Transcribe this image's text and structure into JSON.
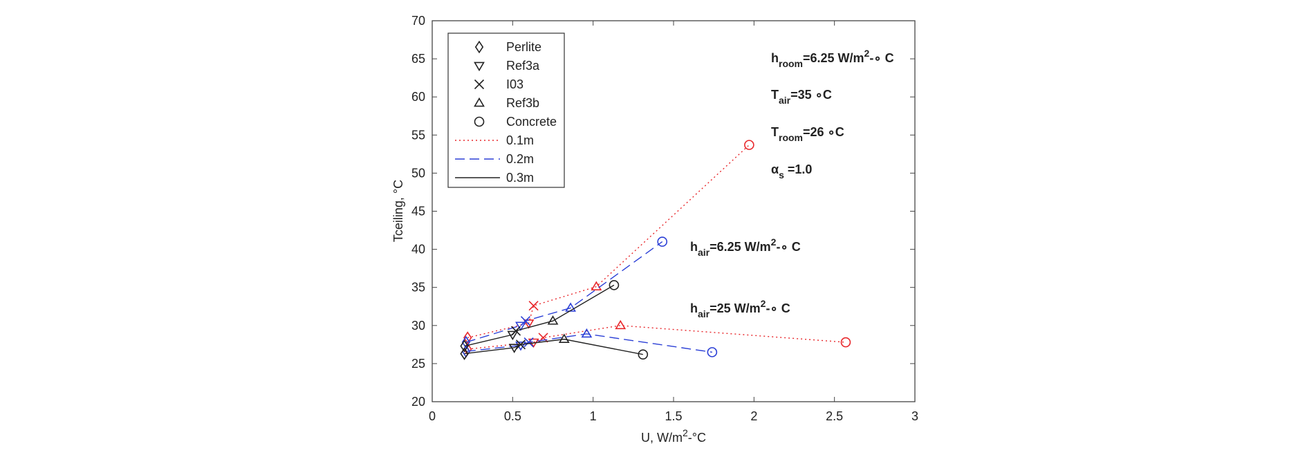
{
  "chart_data": {
    "type": "line",
    "xlabel": [
      {
        "text": "U, W/m"
      },
      {
        "text": "2",
        "style": "sup"
      },
      {
        "text": "-°C"
      }
    ],
    "ylabel": "Tceiling, °C",
    "xlim": [
      0,
      3
    ],
    "xticks": [
      0,
      0.5,
      1,
      1.5,
      2,
      2.5,
      3
    ],
    "ylim": [
      20,
      70
    ],
    "yticks": [
      20,
      25,
      30,
      35,
      40,
      45,
      50,
      55,
      60,
      65,
      70
    ],
    "grid": false,
    "legend": "upper left",
    "materials": [
      {
        "name": "Perlite",
        "marker": "diamond"
      },
      {
        "name": "Ref3a",
        "marker": "triangle-down"
      },
      {
        "name": "I03",
        "marker": "x"
      },
      {
        "name": "Ref3b",
        "marker": "triangle-up"
      },
      {
        "name": "Concrete",
        "marker": "circle"
      }
    ],
    "series": [
      {
        "name": "0.1m",
        "color": "#e8262a",
        "dash": "dotted",
        "curves": [
          {
            "x": [
              0.22,
              0.6,
              0.63,
              1.02,
              1.97
            ],
            "values": [
              28.4,
              30.3,
              32.6,
              35.1,
              53.7
            ]
          },
          {
            "x": [
              0.22,
              0.63,
              0.69,
              1.17,
              2.57
            ],
            "values": [
              26.9,
              27.8,
              28.4,
              30.0,
              27.8
            ]
          }
        ]
      },
      {
        "name": "0.2m",
        "color": "#2b3fd6",
        "dash": "dashed",
        "curves": [
          {
            "x": [
              0.21,
              0.55,
              0.58,
              0.86,
              1.43
            ],
            "values": [
              27.8,
              30.0,
              30.6,
              32.3,
              41.0
            ]
          },
          {
            "x": [
              0.21,
              0.55,
              0.6,
              0.96,
              1.74
            ],
            "values": [
              26.6,
              27.4,
              27.8,
              28.9,
              26.5
            ]
          }
        ]
      },
      {
        "name": "0.3m",
        "color": "#222222",
        "dash": "solid",
        "curves": [
          {
            "x": [
              0.2,
              0.5,
              0.52,
              0.75,
              1.13
            ],
            "values": [
              27.3,
              28.8,
              29.3,
              30.6,
              35.3
            ]
          },
          {
            "x": [
              0.2,
              0.51,
              0.55,
              0.82,
              1.31
            ],
            "values": [
              26.3,
              27.1,
              27.5,
              28.2,
              26.2
            ]
          }
        ]
      }
    ],
    "annotations": [
      [
        {
          "text": "h"
        },
        {
          "text": "room",
          "style": "sub"
        },
        {
          "text": "=6.25 W/m"
        },
        {
          "text": "2",
          "style": "sup"
        },
        {
          "text": "-∘ C"
        }
      ],
      [
        {
          "text": "T"
        },
        {
          "text": "air",
          "style": "sub"
        },
        {
          "text": "=35 ∘C"
        }
      ],
      [
        {
          "text": "T"
        },
        {
          "text": "room",
          "style": "sub"
        },
        {
          "text": "=26 ∘C"
        }
      ],
      [
        {
          "text": "α"
        },
        {
          "text": "s",
          "style": "sub"
        },
        {
          "text": " =1.0"
        }
      ],
      [
        {
          "text": "h"
        },
        {
          "text": "air",
          "style": "sub"
        },
        {
          "text": "=6.25 W/m"
        },
        {
          "text": "2",
          "style": "sup"
        },
        {
          "text": "-∘ C"
        }
      ],
      [
        {
          "text": "h"
        },
        {
          "text": "air",
          "style": "sub"
        },
        {
          "text": "=25 W/m"
        },
        {
          "text": "2",
          "style": "sup"
        },
        {
          "text": "-∘ C"
        }
      ]
    ]
  }
}
